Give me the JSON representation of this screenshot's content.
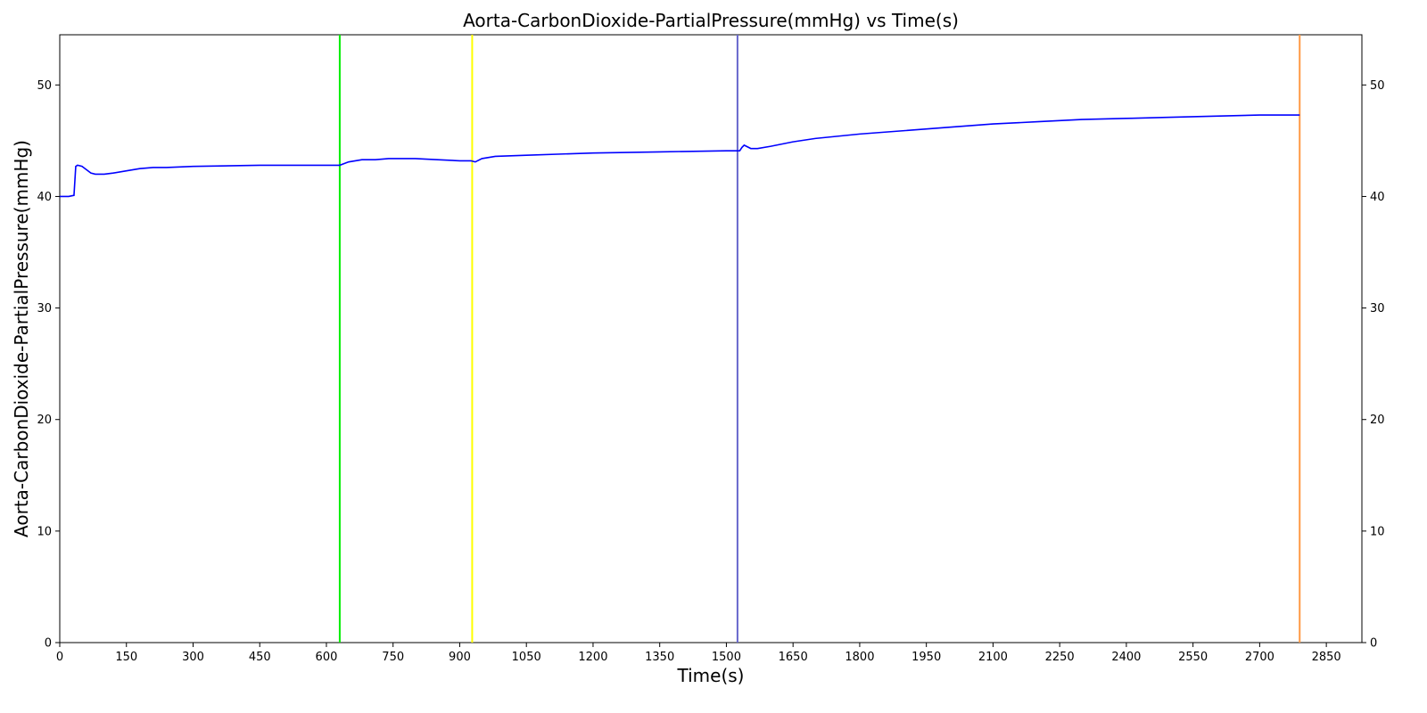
{
  "chart_data": {
    "type": "line",
    "title": "Aorta-CarbonDioxide-PartialPressure(mmHg) vs Time(s)",
    "xlabel": "Time(s)",
    "ylabel": "Aorta-CarbonDioxide-PartialPressure(mmHg)",
    "xlim": [
      0,
      2930
    ],
    "ylim": [
      0,
      54.5
    ],
    "xticks": [
      0,
      150,
      300,
      450,
      600,
      750,
      900,
      1050,
      1200,
      1350,
      1500,
      1650,
      1800,
      1950,
      2100,
      2250,
      2400,
      2550,
      2700,
      2850
    ],
    "yticks": [
      0,
      10,
      20,
      30,
      40,
      50
    ],
    "right_yticks": [
      0,
      10,
      20,
      30,
      40,
      50
    ],
    "grid": false,
    "legend": "none",
    "series": [
      {
        "color": "#0000ff",
        "x": [
          0,
          20,
          32,
          36,
          40,
          50,
          60,
          70,
          80,
          100,
          120,
          150,
          180,
          210,
          240,
          300,
          450,
          600,
          630,
          650,
          680,
          710,
          740,
          770,
          800,
          850,
          900,
          925,
          935,
          950,
          980,
          1050,
          1200,
          1350,
          1500,
          1530,
          1535,
          1540,
          1545,
          1555,
          1570,
          1600,
          1650,
          1700,
          1800,
          1900,
          2000,
          2100,
          2200,
          2300,
          2400,
          2500,
          2600,
          2700,
          2790
        ],
        "y": [
          40.0,
          40.0,
          40.1,
          42.7,
          42.8,
          42.7,
          42.4,
          42.1,
          42.0,
          42.0,
          42.1,
          42.3,
          42.5,
          42.6,
          42.6,
          42.7,
          42.8,
          42.8,
          42.8,
          43.1,
          43.3,
          43.3,
          43.4,
          43.4,
          43.4,
          43.3,
          43.2,
          43.2,
          43.1,
          43.4,
          43.6,
          43.7,
          43.9,
          44.0,
          44.1,
          44.1,
          44.4,
          44.6,
          44.5,
          44.3,
          44.3,
          44.5,
          44.9,
          45.2,
          45.6,
          45.9,
          46.2,
          46.5,
          46.7,
          46.9,
          47.0,
          47.1,
          47.2,
          47.3,
          47.3
        ]
      }
    ],
    "vlines": [
      {
        "x": 630,
        "color": "#00ee00"
      },
      {
        "x": 928,
        "color": "#ffff00"
      },
      {
        "x": 1525,
        "color": "#6666cc"
      },
      {
        "x": 2790,
        "color": "#ff9944"
      }
    ]
  }
}
